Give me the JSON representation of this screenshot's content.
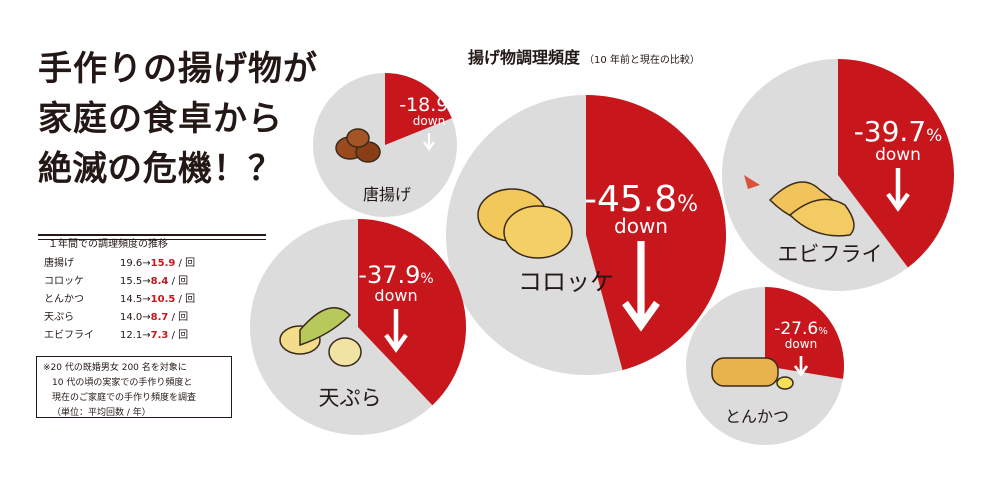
{
  "headline": {
    "line1": "手作りの揚げ物が",
    "line2": "家庭の食卓から",
    "line3": "絶滅の危機！？",
    "emphasis_dots": "・・"
  },
  "chart_title": {
    "main": "揚げ物調理頻度",
    "sub": "（10 年前と現在の比較）"
  },
  "table": {
    "caption": "１年間での調理頻度の推移",
    "rows": [
      {
        "name": "唐揚げ",
        "before": "19.6",
        "after": "15.9",
        "unit": "/ 回"
      },
      {
        "name": "コロッケ",
        "before": "15.5",
        "after": "8.4",
        "unit": "/ 回"
      },
      {
        "name": "とんかつ",
        "before": "14.5",
        "after": "10.5",
        "unit": "/ 回"
      },
      {
        "name": "天ぷら",
        "before": "14.0",
        "after": "8.7",
        "unit": "/ 回"
      },
      {
        "name": "エビフライ",
        "before": "12.1",
        "after": "7.3",
        "unit": "/ 回"
      }
    ]
  },
  "note": {
    "line1": "※20 代の既婚男女 200 名を対象に",
    "line2": "10 代の頃の実家での手作り頻度と",
    "line3": "現在のご家庭での手作り頻度を調査",
    "line4": "（単位：平均回数 / 年）"
  },
  "colors": {
    "decline": "#c8161d",
    "rest": "#dcdcdd",
    "text": "#231815"
  },
  "chart_data": {
    "type": "pie",
    "title": "揚げ物調理頻度",
    "subtitle": "（10 年前と現在の比較）",
    "pies": [
      {
        "label": "唐揚げ",
        "change_pct": -18.9,
        "pct_text": "-18.9",
        "down_text": "down",
        "before": 19.6,
        "after": 15.9
      },
      {
        "label": "コロッケ",
        "change_pct": -45.8,
        "pct_text": "-45.8",
        "down_text": "down",
        "before": 15.5,
        "after": 8.4
      },
      {
        "label": "エビフライ",
        "change_pct": -39.7,
        "pct_text": "-39.7",
        "down_text": "down",
        "before": 12.1,
        "after": 7.3
      },
      {
        "label": "天ぷら",
        "change_pct": -37.9,
        "pct_text": "-37.9",
        "down_text": "down",
        "before": 14.0,
        "after": 8.7
      },
      {
        "label": "とんかつ",
        "change_pct": -27.6,
        "pct_text": "-27.6",
        "down_text": "down",
        "before": 14.5,
        "after": 10.5
      }
    ],
    "pct_sign": "%"
  }
}
